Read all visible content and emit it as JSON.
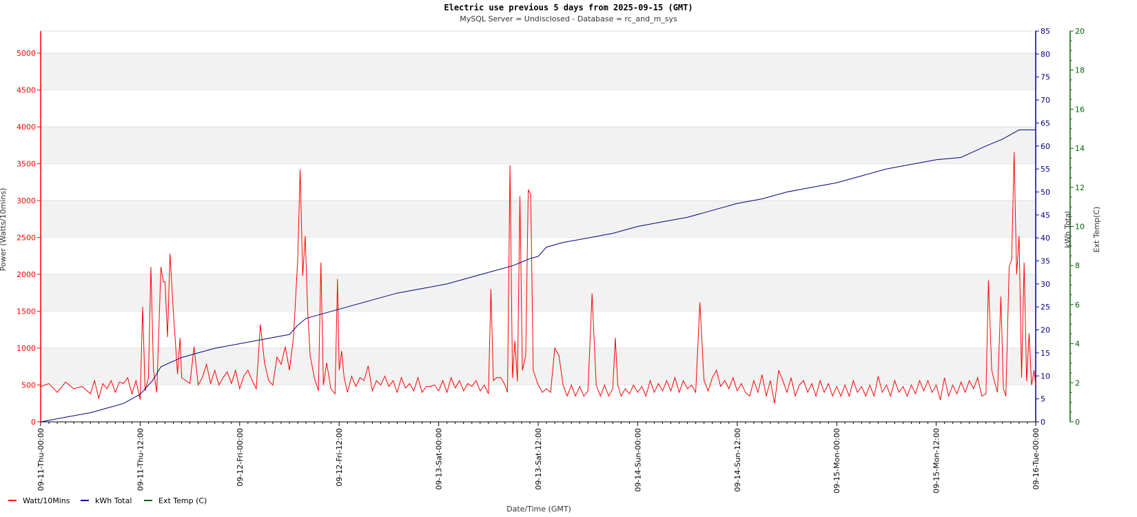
{
  "chart_data": {
    "type": "line",
    "title": "Electric use previous 5     days from 2025-09-15 (GMT)",
    "subtitle": "MySQL Server = Undisclosed - Database = rc_and_m_sys",
    "xlabel": "Date/Time (GMT)",
    "ylabel_left": "Power (Watts/10mins)",
    "ylabel_right1": "kWh Total",
    "ylabel_right2": "Ext Temp(C)",
    "x_ticks": [
      "09-11-Thu-00:00",
      "09-11-Thu-12:00",
      "09-12-Fri-00:00",
      "09-12-Fri-12:00",
      "09-13-Sat-00:00",
      "09-13-Sat-12:00",
      "09-14-Sun-00:00",
      "09-14-Sun-12:00",
      "09-15-Mon-00:00",
      "09-15-Mon-12:00",
      "09-16-Tue-00:00"
    ],
    "x_unit": "hours since 09-11-Thu-00:00",
    "xlim": [
      0,
      120
    ],
    "y_left": {
      "ylim": [
        0,
        5300
      ],
      "ticks": [
        0,
        500,
        1000,
        1500,
        2000,
        2500,
        3000,
        3500,
        4000,
        4500,
        5000
      ]
    },
    "y_kwh": {
      "ylim": [
        0,
        85
      ],
      "ticks": [
        0,
        5,
        10,
        15,
        20,
        25,
        30,
        35,
        40,
        45,
        50,
        55,
        60,
        65,
        70,
        75,
        80,
        85
      ]
    },
    "y_temp": {
      "ylim": [
        0,
        20
      ],
      "ticks": [
        0,
        2,
        4,
        6,
        8,
        10,
        12,
        14,
        16,
        18,
        20
      ]
    },
    "grid": "horizontal bands",
    "legend_position": "bottom-left",
    "series": [
      {
        "name": "Watt/10Mins",
        "color": "#ff0000",
        "axis": "left",
        "points": [
          [
            0,
            480
          ],
          [
            1,
            520
          ],
          [
            2,
            400
          ],
          [
            3,
            540
          ],
          [
            4,
            450
          ],
          [
            5,
            480
          ],
          [
            6,
            380
          ],
          [
            6.5,
            560
          ],
          [
            7,
            320
          ],
          [
            7.5,
            520
          ],
          [
            8,
            450
          ],
          [
            8.5,
            560
          ],
          [
            9,
            400
          ],
          [
            9.5,
            540
          ],
          [
            10,
            520
          ],
          [
            10.5,
            600
          ],
          [
            11,
            380
          ],
          [
            11.5,
            560
          ],
          [
            12,
            300
          ],
          [
            12.3,
            1560
          ],
          [
            12.6,
            420
          ],
          [
            13,
            600
          ],
          [
            13.3,
            2100
          ],
          [
            13.6,
            700
          ],
          [
            14,
            400
          ],
          [
            14.5,
            2100
          ],
          [
            14.8,
            1900
          ],
          [
            15,
            1900
          ],
          [
            15.3,
            1150
          ],
          [
            15.6,
            2280
          ],
          [
            16,
            1500
          ],
          [
            16.5,
            650
          ],
          [
            16.8,
            1140
          ],
          [
            17,
            600
          ],
          [
            17.5,
            560
          ],
          [
            18,
            520
          ],
          [
            18.5,
            1020
          ],
          [
            19,
            500
          ],
          [
            19.5,
            600
          ],
          [
            20,
            780
          ],
          [
            20.5,
            520
          ],
          [
            21,
            700
          ],
          [
            21.5,
            500
          ],
          [
            22,
            600
          ],
          [
            22.5,
            680
          ],
          [
            23,
            520
          ],
          [
            23.5,
            700
          ],
          [
            24,
            450
          ],
          [
            24.5,
            620
          ],
          [
            25,
            700
          ],
          [
            25.5,
            560
          ],
          [
            26,
            450
          ],
          [
            26.5,
            1320
          ],
          [
            27,
            800
          ],
          [
            27.5,
            560
          ],
          [
            28,
            500
          ],
          [
            28.5,
            880
          ],
          [
            29,
            780
          ],
          [
            29.5,
            1020
          ],
          [
            30,
            700
          ],
          [
            30.5,
            1150
          ],
          [
            31,
            2200
          ],
          [
            31.3,
            3420
          ],
          [
            31.6,
            1980
          ],
          [
            31.9,
            2520
          ],
          [
            32.2,
            1500
          ],
          [
            32.5,
            900
          ],
          [
            33,
            600
          ],
          [
            33.5,
            420
          ],
          [
            33.8,
            2160
          ],
          [
            34.1,
            500
          ],
          [
            34.5,
            800
          ],
          [
            35,
            450
          ],
          [
            35.5,
            380
          ],
          [
            35.8,
            1940
          ],
          [
            36,
            700
          ],
          [
            36.3,
            960
          ],
          [
            36.6,
            600
          ],
          [
            37,
            400
          ],
          [
            37.5,
            620
          ],
          [
            38,
            480
          ],
          [
            38.5,
            600
          ],
          [
            39,
            560
          ],
          [
            39.5,
            760
          ],
          [
            40,
            420
          ],
          [
            40.5,
            560
          ],
          [
            41,
            500
          ],
          [
            41.5,
            620
          ],
          [
            42,
            480
          ],
          [
            42.5,
            560
          ],
          [
            43,
            400
          ],
          [
            43.5,
            600
          ],
          [
            44,
            460
          ],
          [
            44.5,
            520
          ],
          [
            45,
            420
          ],
          [
            45.5,
            600
          ],
          [
            46,
            400
          ],
          [
            46.5,
            480
          ],
          [
            47,
            480
          ],
          [
            47.5,
            500
          ],
          [
            48,
            420
          ],
          [
            48.5,
            560
          ],
          [
            49,
            400
          ],
          [
            49.5,
            600
          ],
          [
            50,
            460
          ],
          [
            50.5,
            560
          ],
          [
            51,
            420
          ],
          [
            51.5,
            520
          ],
          [
            52,
            480
          ],
          [
            52.5,
            560
          ],
          [
            53,
            420
          ],
          [
            53.5,
            500
          ],
          [
            54,
            380
          ],
          [
            54.3,
            1800
          ],
          [
            54.6,
            560
          ],
          [
            55,
            600
          ],
          [
            55.5,
            600
          ],
          [
            56,
            500
          ],
          [
            56.3,
            400
          ],
          [
            56.6,
            3480
          ],
          [
            56.9,
            600
          ],
          [
            57.2,
            1100
          ],
          [
            57.5,
            550
          ],
          [
            57.8,
            3060
          ],
          [
            58.1,
            700
          ],
          [
            58.5,
            900
          ],
          [
            58.8,
            3150
          ],
          [
            59.1,
            3080
          ],
          [
            59.4,
            700
          ],
          [
            60,
            500
          ],
          [
            60.5,
            400
          ],
          [
            61,
            450
          ],
          [
            61.5,
            400
          ],
          [
            62,
            1000
          ],
          [
            62.5,
            900
          ],
          [
            63,
            500
          ],
          [
            63.5,
            350
          ],
          [
            64,
            500
          ],
          [
            64.5,
            350
          ],
          [
            65,
            480
          ],
          [
            65.5,
            350
          ],
          [
            66,
            420
          ],
          [
            66.5,
            1740
          ],
          [
            67,
            500
          ],
          [
            67.5,
            350
          ],
          [
            68,
            500
          ],
          [
            68.5,
            350
          ],
          [
            69,
            450
          ],
          [
            69.3,
            1140
          ],
          [
            69.6,
            500
          ],
          [
            70,
            350
          ],
          [
            70.5,
            450
          ],
          [
            71,
            380
          ],
          [
            71.5,
            500
          ],
          [
            72,
            400
          ],
          [
            72.5,
            480
          ],
          [
            73,
            350
          ],
          [
            73.5,
            560
          ],
          [
            74,
            400
          ],
          [
            74.5,
            520
          ],
          [
            75,
            420
          ],
          [
            75.5,
            560
          ],
          [
            76,
            420
          ],
          [
            76.5,
            600
          ],
          [
            77,
            400
          ],
          [
            77.5,
            560
          ],
          [
            78,
            450
          ],
          [
            78.5,
            500
          ],
          [
            79,
            400
          ],
          [
            79.5,
            1620
          ],
          [
            80,
            560
          ],
          [
            80.5,
            420
          ],
          [
            81,
            600
          ],
          [
            81.5,
            700
          ],
          [
            82,
            480
          ],
          [
            82.5,
            560
          ],
          [
            83,
            450
          ],
          [
            83.5,
            600
          ],
          [
            84,
            420
          ],
          [
            84.5,
            520
          ],
          [
            85,
            400
          ],
          [
            85.5,
            350
          ],
          [
            86,
            560
          ],
          [
            86.5,
            400
          ],
          [
            87,
            640
          ],
          [
            87.5,
            350
          ],
          [
            88,
            560
          ],
          [
            88.5,
            250
          ],
          [
            89,
            700
          ],
          [
            89.5,
            560
          ],
          [
            90,
            400
          ],
          [
            90.5,
            600
          ],
          [
            91,
            350
          ],
          [
            91.5,
            500
          ],
          [
            92,
            560
          ],
          [
            92.5,
            400
          ],
          [
            93,
            520
          ],
          [
            93.5,
            350
          ],
          [
            94,
            560
          ],
          [
            94.5,
            400
          ],
          [
            95,
            520
          ],
          [
            95.5,
            350
          ],
          [
            96,
            480
          ],
          [
            96.5,
            350
          ],
          [
            97,
            500
          ],
          [
            97.5,
            350
          ],
          [
            98,
            560
          ],
          [
            98.5,
            400
          ],
          [
            99,
            480
          ],
          [
            99.5,
            350
          ],
          [
            100,
            500
          ],
          [
            100.5,
            350
          ],
          [
            101,
            620
          ],
          [
            101.5,
            400
          ],
          [
            102,
            500
          ],
          [
            102.5,
            350
          ],
          [
            103,
            560
          ],
          [
            103.5,
            400
          ],
          [
            104,
            480
          ],
          [
            104.5,
            350
          ],
          [
            105,
            500
          ],
          [
            105.5,
            380
          ],
          [
            106,
            560
          ],
          [
            106.5,
            420
          ],
          [
            107,
            560
          ],
          [
            107.5,
            400
          ],
          [
            108,
            500
          ],
          [
            108.5,
            300
          ],
          [
            109,
            600
          ],
          [
            109.5,
            350
          ],
          [
            110,
            500
          ],
          [
            110.5,
            380
          ],
          [
            111,
            540
          ],
          [
            111.5,
            400
          ],
          [
            112,
            560
          ],
          [
            112.5,
            450
          ],
          [
            113,
            600
          ],
          [
            113.5,
            350
          ],
          [
            114,
            380
          ],
          [
            114.3,
            1920
          ],
          [
            114.7,
            700
          ],
          [
            115,
            560
          ],
          [
            115.4,
            400
          ],
          [
            115.8,
            1700
          ],
          [
            116.1,
            450
          ],
          [
            116.4,
            350
          ],
          [
            116.8,
            2100
          ],
          [
            117.1,
            2200
          ],
          [
            117.4,
            3660
          ],
          [
            117.7,
            2000
          ],
          [
            118,
            2520
          ],
          [
            118.3,
            600
          ],
          [
            118.6,
            2160
          ],
          [
            118.9,
            550
          ],
          [
            119.2,
            1200
          ],
          [
            119.5,
            500
          ],
          [
            119.8,
            700
          ],
          [
            120,
            500
          ]
        ]
      },
      {
        "name": "kWh Total",
        "color": "#000080",
        "axis": "kwh",
        "points": [
          [
            0,
            0
          ],
          [
            3,
            1
          ],
          [
            6,
            2
          ],
          [
            8,
            3
          ],
          [
            10,
            4
          ],
          [
            11,
            5
          ],
          [
            12,
            6
          ],
          [
            13.5,
            9
          ],
          [
            14.5,
            12
          ],
          [
            17,
            14
          ],
          [
            19,
            15
          ],
          [
            21,
            16
          ],
          [
            24,
            17
          ],
          [
            27,
            18
          ],
          [
            30,
            19
          ],
          [
            31,
            21
          ],
          [
            32,
            22.5
          ],
          [
            34,
            23.5
          ],
          [
            37,
            25
          ],
          [
            40,
            26.5
          ],
          [
            43,
            28
          ],
          [
            46,
            29
          ],
          [
            49,
            30
          ],
          [
            52,
            31.5
          ],
          [
            55,
            33
          ],
          [
            57,
            34
          ],
          [
            59,
            35.5
          ],
          [
            60,
            36
          ],
          [
            61,
            38
          ],
          [
            63,
            39
          ],
          [
            66,
            40
          ],
          [
            69,
            41
          ],
          [
            72,
            42.5
          ],
          [
            75,
            43.5
          ],
          [
            78,
            44.5
          ],
          [
            81,
            46
          ],
          [
            84,
            47.5
          ],
          [
            87,
            48.5
          ],
          [
            90,
            50
          ],
          [
            93,
            51
          ],
          [
            96,
            52
          ],
          [
            99,
            53.5
          ],
          [
            102,
            55
          ],
          [
            105,
            56
          ],
          [
            108,
            57
          ],
          [
            111,
            57.5
          ],
          [
            114,
            60
          ],
          [
            116,
            61.5
          ],
          [
            118,
            63.5
          ],
          [
            120,
            63.5
          ]
        ]
      },
      {
        "name": "Ext Temp (C)",
        "color": "#006400",
        "axis": "temp",
        "points": []
      }
    ]
  }
}
